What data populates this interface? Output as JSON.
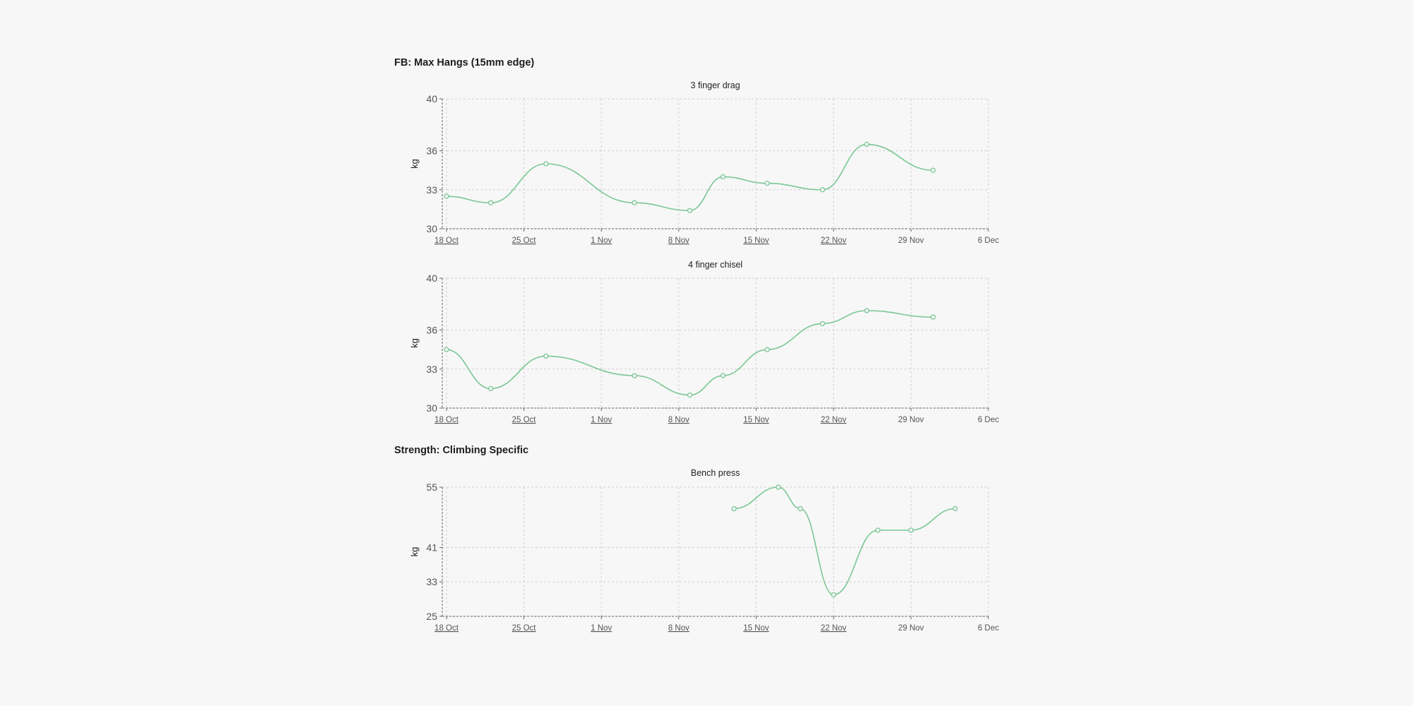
{
  "sections": [
    {
      "title": "FB: Max Hangs (15mm edge)"
    },
    {
      "title": "Strength: Climbing Specific"
    }
  ],
  "colors": {
    "series": "#7ac795"
  },
  "chart_data": [
    {
      "type": "line",
      "section": 0,
      "title": "3 finger drag",
      "ylabel": "kg",
      "xlabel": "",
      "x_ticks": [
        "18 Oct",
        "25 Oct",
        "1 Nov",
        "8 Nov",
        "15 Nov",
        "22 Nov",
        "29 Nov",
        "6 Dec"
      ],
      "x_tick_underlined": [
        true,
        true,
        true,
        true,
        true,
        true,
        false,
        false
      ],
      "y_ticks": [
        30,
        33,
        36,
        40
      ],
      "ylim": [
        30,
        40
      ],
      "xlim_days": [
        0,
        49
      ],
      "grid": true,
      "series": [
        {
          "values": [
            {
              "x": "18 Oct",
              "y": 32.5
            },
            {
              "x": "22 Oct",
              "y": 32.0
            },
            {
              "x": "27 Oct",
              "y": 35.0
            },
            {
              "x": "4 Nov",
              "y": 32.0
            },
            {
              "x": "9 Nov",
              "y": 31.4
            },
            {
              "x": "12 Nov",
              "y": 34.0
            },
            {
              "x": "16 Nov",
              "y": 33.5
            },
            {
              "x": "21 Nov",
              "y": 33.0
            },
            {
              "x": "25 Nov",
              "y": 36.5
            },
            {
              "x": "1 Dec",
              "y": 34.5
            }
          ]
        }
      ]
    },
    {
      "type": "line",
      "section": 0,
      "title": "4 finger chisel",
      "ylabel": "kg",
      "xlabel": "",
      "x_ticks": [
        "18 Oct",
        "25 Oct",
        "1 Nov",
        "8 Nov",
        "15 Nov",
        "22 Nov",
        "29 Nov",
        "6 Dec"
      ],
      "x_tick_underlined": [
        true,
        true,
        true,
        true,
        true,
        true,
        false,
        false
      ],
      "y_ticks": [
        30,
        33,
        36,
        40
      ],
      "ylim": [
        30,
        40
      ],
      "xlim_days": [
        0,
        49
      ],
      "grid": true,
      "series": [
        {
          "values": [
            {
              "x": "18 Oct",
              "y": 34.5
            },
            {
              "x": "22 Oct",
              "y": 31.5
            },
            {
              "x": "27 Oct",
              "y": 34.0
            },
            {
              "x": "4 Nov",
              "y": 32.5
            },
            {
              "x": "9 Nov",
              "y": 31.0
            },
            {
              "x": "12 Nov",
              "y": 32.5
            },
            {
              "x": "16 Nov",
              "y": 34.5
            },
            {
              "x": "21 Nov",
              "y": 36.5
            },
            {
              "x": "25 Nov",
              "y": 37.5
            },
            {
              "x": "1 Dec",
              "y": 37.0
            }
          ]
        }
      ]
    },
    {
      "type": "line",
      "section": 1,
      "title": "Bench press",
      "ylabel": "kg",
      "xlabel": "",
      "x_ticks": [
        "18 Oct",
        "25 Oct",
        "1 Nov",
        "8 Nov",
        "15 Nov",
        "22 Nov",
        "29 Nov",
        "6 Dec"
      ],
      "x_tick_underlined": [
        true,
        true,
        true,
        true,
        true,
        true,
        false,
        false
      ],
      "y_ticks": [
        25,
        33,
        41,
        55
      ],
      "ylim": [
        25,
        55
      ],
      "xlim_days": [
        0,
        49
      ],
      "grid": true,
      "series": [
        {
          "values": [
            {
              "x": "13 Nov",
              "y": 50
            },
            {
              "x": "17 Nov",
              "y": 55
            },
            {
              "x": "19 Nov",
              "y": 50
            },
            {
              "x": "22 Nov",
              "y": 30
            },
            {
              "x": "26 Nov",
              "y": 45
            },
            {
              "x": "29 Nov",
              "y": 45
            },
            {
              "x": "3 Dec",
              "y": 50
            }
          ]
        }
      ]
    }
  ]
}
